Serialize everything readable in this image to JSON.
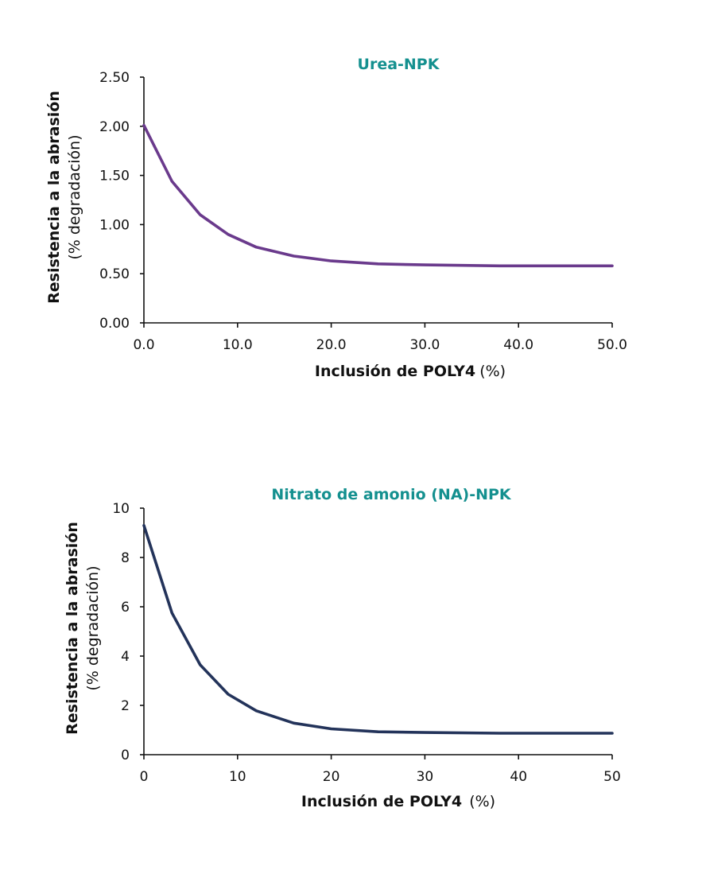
{
  "chart_data": [
    {
      "type": "line",
      "title": "Urea-NPK",
      "ylabel_main": "Resistencia a la abrasión",
      "ylabel_sub": "(% degradación)",
      "xlabel_main": "Inclusión de POLY4",
      "xlabel_sub": "(%)",
      "xlim": [
        0,
        50
      ],
      "ylim": [
        0,
        2.5
      ],
      "x_ticks": [
        "0.0",
        "10.0",
        "20.0",
        "30.0",
        "40.0",
        "50.0"
      ],
      "y_ticks": [
        "0.00",
        "0.50",
        "1.00",
        "1.50",
        "2.00",
        "2.50"
      ],
      "line_color": "#6a3a8c",
      "title_color": "#14908f",
      "grid": false,
      "series": [
        {
          "x": [
            0,
            3,
            6,
            9,
            12,
            16,
            20,
            25,
            30,
            38,
            50
          ],
          "values": [
            2.01,
            1.44,
            1.1,
            0.9,
            0.77,
            0.68,
            0.63,
            0.6,
            0.59,
            0.58,
            0.58
          ]
        }
      ]
    },
    {
      "type": "line",
      "title": "Nitrato de amonio (NA)-NPK",
      "ylabel_main": "Resistencia a la abrasión",
      "ylabel_sub": "(% degradación)",
      "xlabel_main": "Inclusión de POLY4",
      "xlabel_sub": "(%)",
      "xlim": [
        0,
        50
      ],
      "ylim": [
        0,
        10
      ],
      "x_ticks": [
        "0",
        "10",
        "20",
        "30",
        "40",
        "50"
      ],
      "y_ticks": [
        "0",
        "2",
        "4",
        "6",
        "8",
        "10"
      ],
      "line_color": "#23335a",
      "title_color": "#14908f",
      "grid": false,
      "series": [
        {
          "x": [
            0,
            3,
            6,
            9,
            12,
            16,
            20,
            25,
            30,
            38,
            50
          ],
          "values": [
            9.3,
            5.75,
            3.65,
            2.45,
            1.78,
            1.28,
            1.05,
            0.93,
            0.9,
            0.87,
            0.87
          ]
        }
      ]
    }
  ]
}
